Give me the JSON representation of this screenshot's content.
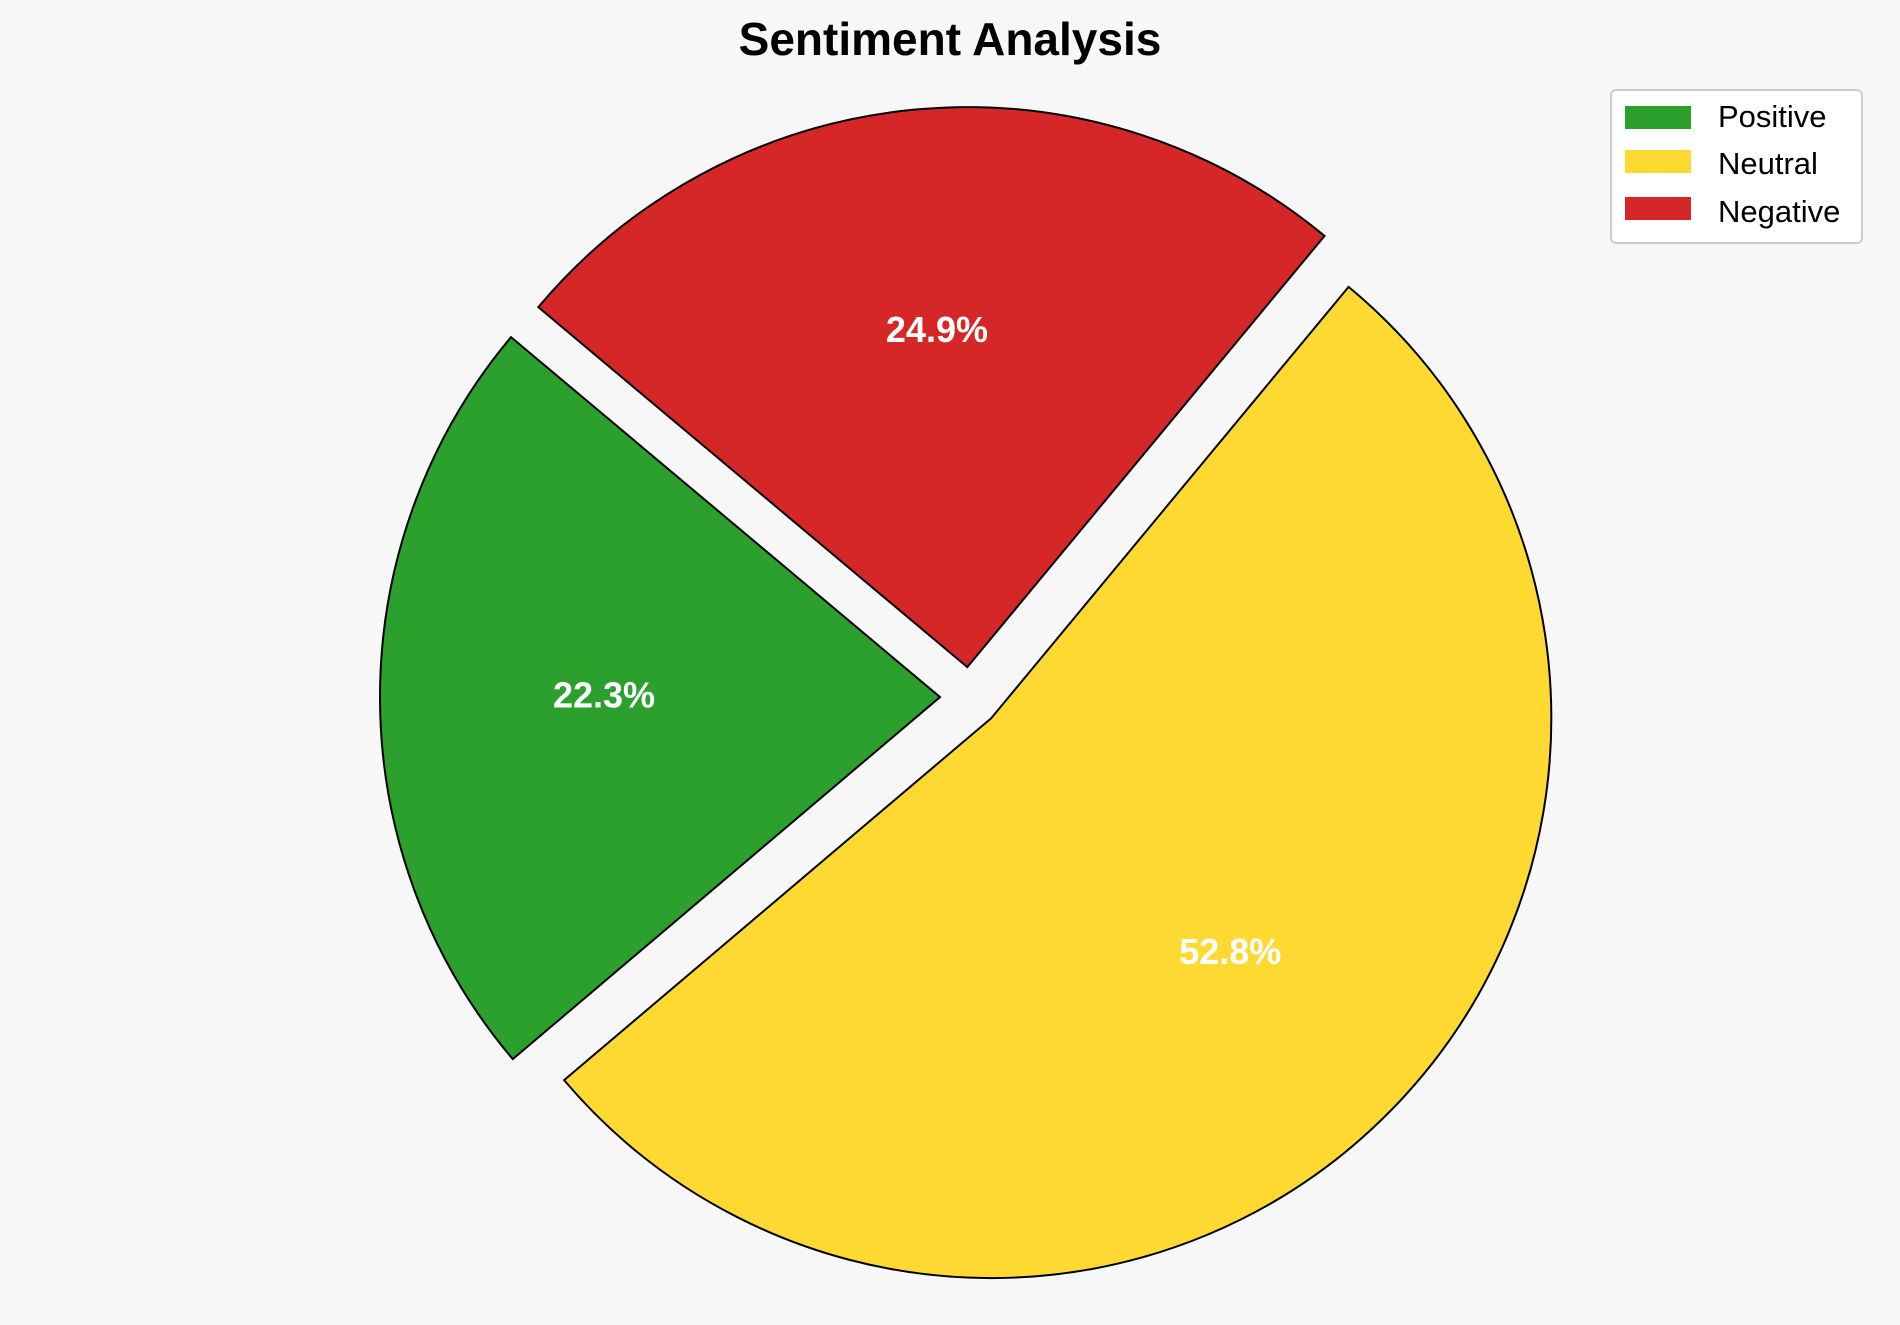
{
  "chart_data": {
    "type": "pie",
    "title": "Sentiment Analysis",
    "categories": [
      "Positive",
      "Neutral",
      "Negative"
    ],
    "values": [
      22.3,
      52.8,
      24.9
    ],
    "labels": [
      "22.3%",
      "52.8%",
      "24.9%"
    ],
    "colors": [
      "#2ca02c",
      "#fdd932",
      "#d62728"
    ],
    "exploded": true,
    "legend": {
      "position": "top-right",
      "entries": [
        "Positive",
        "Neutral",
        "Negative"
      ]
    }
  }
}
